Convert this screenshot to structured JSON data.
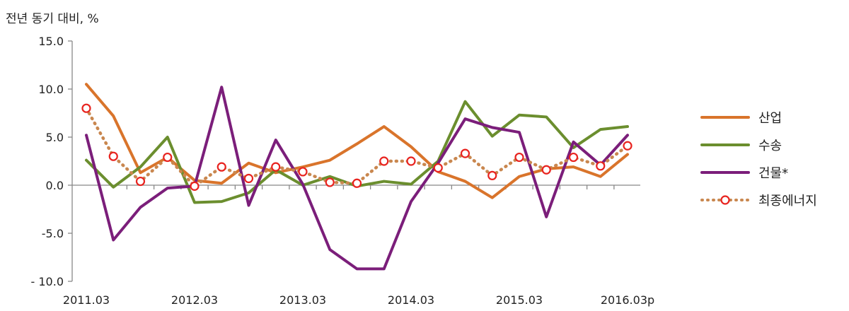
{
  "chart_data": {
    "type": "line",
    "unit_label": "전년 동기 대비, %",
    "ylim": [
      -10,
      15
    ],
    "yticks": [
      15,
      10,
      5,
      0,
      -5,
      -10
    ],
    "ytick_labels": [
      "15.0",
      "10.0",
      "5.0",
      "0.0",
      "-5.0",
      "- 10.0"
    ],
    "x_tick_labels": [
      "2011.03",
      "2012.03",
      "2013.03",
      "2014.03",
      "2015.03",
      "2016.03p"
    ],
    "points_per_year": 4,
    "grid": false,
    "legend_position": "right",
    "series": [
      {
        "name": "산업",
        "color": "#d9742b",
        "style": "solid",
        "values": [
          10.5,
          7.2,
          1.3,
          2.9,
          0.5,
          0.2,
          2.3,
          1.3,
          1.9,
          2.6,
          4.3,
          6.1,
          4.0,
          1.4,
          0.4,
          -1.3,
          0.9,
          1.7,
          1.9,
          0.9,
          3.2
        ]
      },
      {
        "name": "수송",
        "color": "#6b8e2e",
        "style": "solid",
        "values": [
          2.6,
          -0.2,
          1.9,
          5.0,
          -1.8,
          -1.7,
          -0.8,
          1.6,
          0.0,
          0.9,
          -0.1,
          0.4,
          0.1,
          2.5,
          8.7,
          5.1,
          7.3,
          7.1,
          3.9,
          5.8,
          6.1
        ]
      },
      {
        "name": "건물*",
        "color": "#7b1e7a",
        "style": "solid",
        "values": [
          5.2,
          -5.7,
          -2.3,
          -0.3,
          -0.1,
          10.2,
          -2.1,
          4.7,
          0.1,
          -6.7,
          -8.7,
          -8.7,
          -1.7,
          2.3,
          6.9,
          6.0,
          5.5,
          -3.3,
          4.5,
          2.1,
          5.2
        ]
      },
      {
        "name": "최종에너지",
        "color": "#c9874f",
        "style": "dotted",
        "marker_color": "#e8231f",
        "values": [
          8.0,
          3.0,
          0.4,
          2.9,
          -0.1,
          1.9,
          0.7,
          1.9,
          1.4,
          0.3,
          0.2,
          2.5,
          2.5,
          1.8,
          3.3,
          1.0,
          2.9,
          1.6,
          2.9,
          2.0,
          4.1
        ]
      }
    ]
  }
}
